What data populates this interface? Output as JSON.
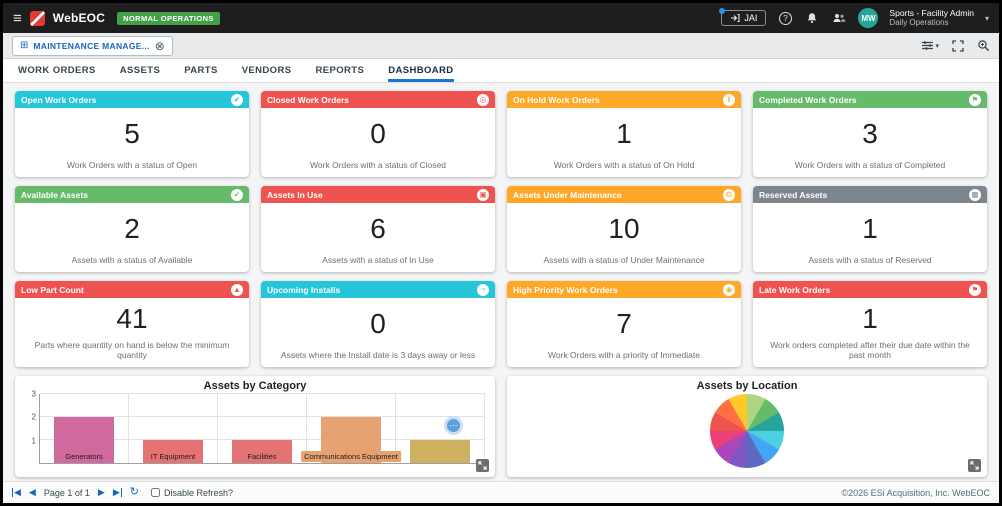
{
  "topbar": {
    "brand": "WebEOC",
    "status_badge": "NORMAL OPERATIONS",
    "jai_label": "JAI",
    "avatar_initials": "MW",
    "user_name": "Sports - Facility Admin",
    "user_sub": "Daily Operations"
  },
  "board_bar": {
    "tab_label": "MAINTENANCE MANAGE...",
    "tab_icon": "grid-icon",
    "right_icons": [
      "view-settings-icon",
      "fullscreen-icon",
      "zoom-search-icon"
    ]
  },
  "nav": {
    "tabs": [
      {
        "label": "WORK ORDERS"
      },
      {
        "label": "ASSETS"
      },
      {
        "label": "PARTS"
      },
      {
        "label": "VENDORS"
      },
      {
        "label": "REPORTS"
      },
      {
        "label": "DASHBOARD"
      }
    ],
    "active_tab": "DASHBOARD"
  },
  "stats": [
    {
      "title": "Open Work Orders",
      "value": "5",
      "desc": "Work Orders with a status of Open",
      "color": "#26c6da",
      "icon": "check-circle-icon",
      "glyph": "✔"
    },
    {
      "title": "Closed Work Orders",
      "value": "0",
      "desc": "Work Orders with a status of Closed",
      "color": "#ef5350",
      "icon": "record-circle-icon",
      "glyph": "◎"
    },
    {
      "title": "On Hold Work Orders",
      "value": "1",
      "desc": "Work Orders with a status of On Hold",
      "color": "#ffa726",
      "icon": "hold-hand-icon",
      "glyph": "‖"
    },
    {
      "title": "Completed Work Orders",
      "value": "3",
      "desc": "Work Orders with a status of Completed",
      "color": "#66bb6a",
      "icon": "flag-icon",
      "glyph": "⚑"
    },
    {
      "title": "Available Assets",
      "value": "2",
      "desc": "Assets with a status of Available",
      "color": "#66bb6a",
      "icon": "check-circle-icon",
      "glyph": "✔"
    },
    {
      "title": "Assets In Use",
      "value": "6",
      "desc": "Assets with a status of In Use",
      "color": "#ef5350",
      "icon": "box-icon",
      "glyph": "▣"
    },
    {
      "title": "Assets Under Maintenance",
      "value": "10",
      "desc": "Assets with a status of Under Maintenance",
      "color": "#ffa726",
      "icon": "wrench-icon",
      "glyph": "⚙"
    },
    {
      "title": "Reserved Assets",
      "value": "1",
      "desc": "Assets with a status of Reserved",
      "color": "#7d868f",
      "icon": "calendar-icon",
      "glyph": "▦"
    },
    {
      "title": "Low Part Count",
      "value": "41",
      "desc": "Parts where quantity on hand is below the minimum quantity",
      "color": "#ef5350",
      "icon": "warning-icon",
      "glyph": "▲"
    },
    {
      "title": "Upcoming Installs",
      "value": "0",
      "desc": "Assets where the Install date is 3 days away or less",
      "color": "#26c6da",
      "icon": "clock-icon",
      "glyph": "◔"
    },
    {
      "title": "High Priority Work Orders",
      "value": "7",
      "desc": "Work Orders with a priority of Immediate",
      "color": "#ffa726",
      "icon": "priority-icon",
      "glyph": "◉"
    },
    {
      "title": "Late Work Orders",
      "value": "1",
      "desc": "Work orders completed after their due date within the past month",
      "color": "#ef5350",
      "icon": "flag-icon",
      "glyph": "⚑"
    }
  ],
  "chart_data": [
    {
      "type": "bar",
      "title": "Assets by Category",
      "categories": [
        "Generators",
        "IT Equipment",
        "Facilities",
        "Communications Equipment",
        ""
      ],
      "values": [
        2,
        1,
        1,
        2,
        1
      ],
      "bar_colors": [
        "#d06a9e",
        "#e57373",
        "#e57373",
        "#e8a271",
        "#cdb161"
      ],
      "xlabel": "",
      "ylabel": "",
      "ylim": [
        0,
        3
      ],
      "yticks": [
        1,
        2,
        3
      ],
      "grid": true,
      "legend": "none"
    },
    {
      "type": "pie",
      "title": "Assets by Location",
      "values": [
        1,
        1,
        1,
        1,
        1,
        1,
        1,
        1,
        1,
        1,
        1,
        1
      ],
      "colors": [
        "#aed581",
        "#66bb6a",
        "#26a69a",
        "#4dd0e1",
        "#42a5f5",
        "#5c6bc0",
        "#7e57c2",
        "#ab47bc",
        "#ec407a",
        "#ef5350",
        "#ff7043",
        "#ffca28"
      ],
      "legend": "none"
    }
  ],
  "footer": {
    "page_text": "Page 1 of 1",
    "disable_refresh_label": "Disable Refresh?",
    "copyright": "©2026 ESi Acquisition, Inc. WebEOC"
  }
}
